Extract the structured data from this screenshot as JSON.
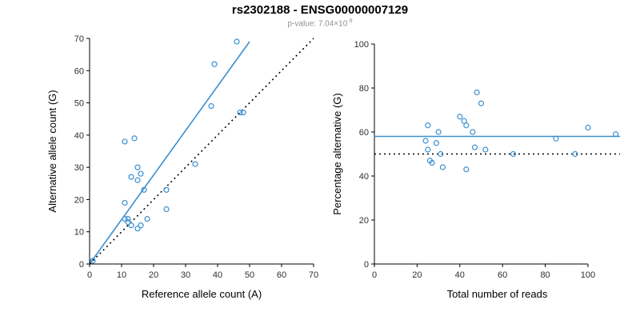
{
  "page": {
    "title": "rs2302188 - ENSG00000007129"
  },
  "subtitle": {
    "prefix": "p-value: 7.04×10",
    "exponent": "-9"
  },
  "point_color": "#3a8fd0",
  "chart_data": [
    {
      "type": "scatter",
      "name": "allele-counts-scatter",
      "xlabel": "Reference allele count (A)",
      "ylabel": "Alternative allele count (G)",
      "xlim": [
        0,
        70
      ],
      "ylim": [
        0,
        70
      ],
      "xticks": [
        0,
        10,
        20,
        30,
        40,
        50,
        60,
        70
      ],
      "yticks": [
        0,
        10,
        20,
        30,
        40,
        50,
        60,
        70
      ],
      "grid": false,
      "points": [
        [
          1,
          1
        ],
        [
          11,
          38
        ],
        [
          14,
          39
        ],
        [
          11,
          19
        ],
        [
          13,
          27
        ],
        [
          15,
          30
        ],
        [
          16,
          28
        ],
        [
          15,
          26
        ],
        [
          17,
          23
        ],
        [
          11,
          14
        ],
        [
          12,
          14
        ],
        [
          12,
          13
        ],
        [
          13,
          12
        ],
        [
          15,
          11
        ],
        [
          16,
          12
        ],
        [
          18,
          14
        ],
        [
          24,
          23
        ],
        [
          24,
          17
        ],
        [
          33,
          31
        ],
        [
          38,
          49
        ],
        [
          39,
          62
        ],
        [
          46,
          69
        ],
        [
          47,
          47
        ],
        [
          48,
          47
        ]
      ],
      "lines": [
        {
          "name": "regression-line",
          "x": [
            0,
            50
          ],
          "y": [
            0,
            69
          ],
          "color": "#3a8fd0",
          "dash": ""
        },
        {
          "name": "identity-line",
          "x": [
            0,
            70
          ],
          "y": [
            0,
            70
          ],
          "color": "#000000",
          "dash": "2,4"
        }
      ]
    },
    {
      "type": "scatter",
      "name": "percentage-vs-reads-scatter",
      "xlabel": "Total number of reads",
      "ylabel": "Percentage alternative (G)",
      "xlim": [
        0,
        115
      ],
      "ylim": [
        0,
        100
      ],
      "xticks": [
        0,
        20,
        40,
        60,
        80,
        100
      ],
      "yticks": [
        0,
        20,
        40,
        60,
        80,
        100
      ],
      "grid": false,
      "points": [
        [
          24,
          56
        ],
        [
          25,
          63
        ],
        [
          25,
          52
        ],
        [
          26,
          47
        ],
        [
          27,
          46
        ],
        [
          29,
          55
        ],
        [
          30,
          60
        ],
        [
          31,
          50
        ],
        [
          32,
          44
        ],
        [
          40,
          67
        ],
        [
          42,
          65
        ],
        [
          43,
          63
        ],
        [
          43,
          43
        ],
        [
          46,
          60
        ],
        [
          47,
          53
        ],
        [
          48,
          78
        ],
        [
          50,
          73
        ],
        [
          52,
          52
        ],
        [
          65,
          50
        ],
        [
          85,
          57
        ],
        [
          94,
          50
        ],
        [
          100,
          62
        ],
        [
          113,
          59
        ]
      ],
      "lines": [
        {
          "name": "mean-percentage-line",
          "x": [
            0,
            115
          ],
          "y": [
            58,
            58
          ],
          "color": "#3a8fd0",
          "dash": ""
        },
        {
          "name": "fifty-percent-line",
          "x": [
            0,
            115
          ],
          "y": [
            50,
            50
          ],
          "color": "#000000",
          "dash": "2,4"
        }
      ]
    }
  ]
}
